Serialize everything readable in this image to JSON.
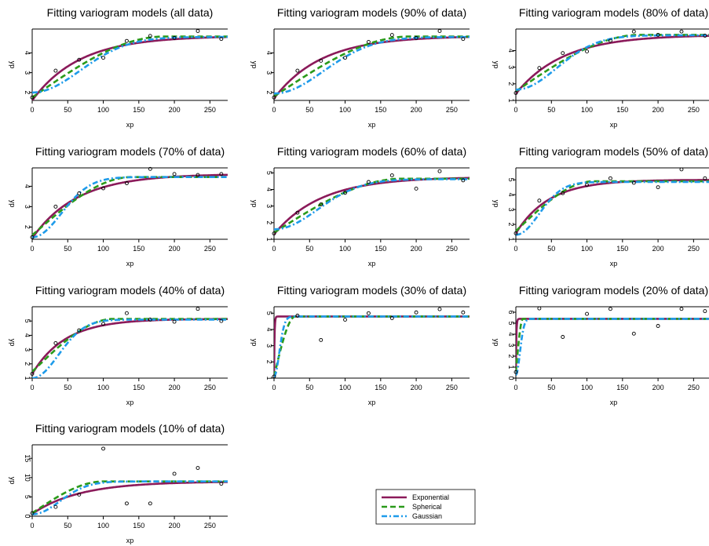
{
  "figure": {
    "xlabel": "xp",
    "ylabel": "yp"
  },
  "legend": {
    "placement": "bottom-center",
    "entries": [
      {
        "label": "Exponential",
        "color": "#8b1a5a",
        "dash": "solid"
      },
      {
        "label": "Spherical",
        "color": "#2a9a1a",
        "dash": "dashed"
      },
      {
        "label": "Gaussian",
        "color": "#1e9bea",
        "dash": "dotdash"
      }
    ]
  },
  "chart_data": [
    {
      "type": "line",
      "title": "Fitting variogram models (all data)",
      "xlabel": "xp",
      "ylabel": "yp",
      "xlim": [
        0,
        275
      ],
      "ylim": [
        1.6,
        5.2
      ],
      "xticks": [
        0,
        50,
        100,
        150,
        200,
        250
      ],
      "yticks": [
        2,
        3,
        4
      ],
      "points": [
        [
          0,
          1.75
        ],
        [
          33,
          3.1
        ],
        [
          66,
          3.65
        ],
        [
          100,
          3.75
        ],
        [
          133,
          4.6
        ],
        [
          166,
          4.85
        ],
        [
          200,
          4.75
        ],
        [
          233,
          5.1
        ],
        [
          266,
          4.7
        ]
      ],
      "models": {
        "exponential": {
          "nugget": 1.6,
          "sill": 4.85,
          "range": 200
        },
        "spherical": {
          "nugget": 1.75,
          "sill": 4.82,
          "range": 185
        },
        "gaussian": {
          "nugget": 2.0,
          "sill": 4.8,
          "range": 165
        }
      }
    },
    {
      "type": "line",
      "title": "Fitting variogram models (90% of data)",
      "xlabel": "xp",
      "ylabel": "yp",
      "xlim": [
        0,
        275
      ],
      "ylim": [
        1.6,
        5.2
      ],
      "xticks": [
        0,
        50,
        100,
        150,
        200,
        250
      ],
      "yticks": [
        2,
        3,
        4
      ],
      "points": [
        [
          0,
          1.75
        ],
        [
          33,
          3.1
        ],
        [
          66,
          3.6
        ],
        [
          100,
          3.75
        ],
        [
          133,
          4.55
        ],
        [
          166,
          4.9
        ],
        [
          200,
          4.75
        ],
        [
          233,
          5.1
        ],
        [
          266,
          4.7
        ]
      ],
      "models": {
        "exponential": {
          "nugget": 1.7,
          "sill": 4.85,
          "range": 200
        },
        "spherical": {
          "nugget": 1.8,
          "sill": 4.82,
          "range": 190
        },
        "gaussian": {
          "nugget": 1.95,
          "sill": 4.8,
          "range": 170
        }
      }
    },
    {
      "type": "line",
      "title": "Fitting variogram models (80% of data)",
      "xlabel": "xp",
      "ylabel": "yp",
      "xlim": [
        0,
        275
      ],
      "ylim": [
        1.0,
        5.3
      ],
      "xticks": [
        0,
        50,
        100,
        150,
        200,
        250
      ],
      "yticks": [
        1,
        2,
        3,
        4
      ],
      "points": [
        [
          0,
          1.45
        ],
        [
          33,
          2.95
        ],
        [
          66,
          3.85
        ],
        [
          100,
          3.95
        ],
        [
          133,
          4.6
        ],
        [
          166,
          5.15
        ],
        [
          200,
          4.95
        ],
        [
          233,
          5.15
        ],
        [
          266,
          4.9
        ]
      ],
      "models": {
        "exponential": {
          "nugget": 1.4,
          "sill": 4.95,
          "range": 200
        },
        "spherical": {
          "nugget": 1.55,
          "sill": 4.95,
          "range": 175
        },
        "gaussian": {
          "nugget": 1.65,
          "sill": 4.92,
          "range": 140
        }
      }
    },
    {
      "type": "line",
      "title": "Fitting variogram models (70% of data)",
      "xlabel": "xp",
      "ylabel": "yp",
      "xlim": [
        0,
        275
      ],
      "ylim": [
        1.4,
        4.9
      ],
      "xticks": [
        0,
        50,
        100,
        150,
        200,
        250
      ],
      "yticks": [
        2,
        3,
        4
      ],
      "points": [
        [
          0,
          1.5
        ],
        [
          33,
          3.0
        ],
        [
          66,
          3.65
        ],
        [
          100,
          3.9
        ],
        [
          133,
          4.15
        ],
        [
          166,
          4.85
        ],
        [
          200,
          4.6
        ],
        [
          233,
          4.55
        ],
        [
          266,
          4.6
        ]
      ],
      "models": {
        "exponential": {
          "nugget": 1.45,
          "sill": 4.6,
          "range": 190
        },
        "spherical": {
          "nugget": 1.6,
          "sill": 4.45,
          "range": 140
        },
        "gaussian": {
          "nugget": 1.5,
          "sill": 4.45,
          "range": 100
        }
      }
    },
    {
      "type": "line",
      "title": "Fitting variogram models (60% of data)",
      "xlabel": "xp",
      "ylabel": "yp",
      "xlim": [
        0,
        275
      ],
      "ylim": [
        1.0,
        5.3
      ],
      "xticks": [
        0,
        50,
        100,
        150,
        200,
        250
      ],
      "yticks": [
        1,
        2,
        3,
        4,
        5
      ],
      "points": [
        [
          0,
          1.35
        ],
        [
          33,
          2.6
        ],
        [
          66,
          3.1
        ],
        [
          100,
          3.8
        ],
        [
          133,
          4.45
        ],
        [
          166,
          4.85
        ],
        [
          200,
          4.05
        ],
        [
          233,
          5.1
        ],
        [
          266,
          4.55
        ]
      ],
      "models": {
        "exponential": {
          "nugget": 1.3,
          "sill": 4.75,
          "range": 200
        },
        "spherical": {
          "nugget": 1.4,
          "sill": 4.65,
          "range": 180
        },
        "gaussian": {
          "nugget": 1.6,
          "sill": 4.62,
          "range": 150
        }
      }
    },
    {
      "type": "line",
      "title": "Fitting variogram models (50% of data)",
      "xlabel": "xp",
      "ylabel": "yp",
      "xlim": [
        0,
        275
      ],
      "ylim": [
        1.0,
        5.8
      ],
      "xticks": [
        0,
        50,
        100,
        150,
        200,
        250
      ],
      "yticks": [
        1,
        2,
        3,
        4,
        5
      ],
      "points": [
        [
          0,
          1.4
        ],
        [
          33,
          3.6
        ],
        [
          66,
          4.1
        ],
        [
          100,
          4.65
        ],
        [
          133,
          5.1
        ],
        [
          166,
          4.8
        ],
        [
          200,
          4.5
        ],
        [
          233,
          5.7
        ],
        [
          266,
          5.1
        ]
      ],
      "models": {
        "exponential": {
          "nugget": 1.4,
          "sill": 5.0,
          "range": 140
        },
        "spherical": {
          "nugget": 1.55,
          "sill": 4.9,
          "range": 110
        },
        "gaussian": {
          "nugget": 1.3,
          "sill": 4.85,
          "range": 80
        }
      }
    },
    {
      "type": "line",
      "title": "Fitting variogram models (40% of data)",
      "xlabel": "xp",
      "ylabel": "yp",
      "xlim": [
        0,
        275
      ],
      "ylim": [
        1.0,
        6.0
      ],
      "xticks": [
        0,
        50,
        100,
        150,
        200,
        250
      ],
      "yticks": [
        1,
        2,
        3,
        4,
        5
      ],
      "points": [
        [
          0,
          1.3
        ],
        [
          33,
          3.45
        ],
        [
          66,
          4.35
        ],
        [
          100,
          4.8
        ],
        [
          133,
          5.55
        ],
        [
          166,
          5.1
        ],
        [
          200,
          4.95
        ],
        [
          233,
          5.85
        ],
        [
          266,
          5.0
        ]
      ],
      "models": {
        "exponential": {
          "nugget": 1.3,
          "sill": 5.15,
          "range": 140
        },
        "spherical": {
          "nugget": 1.45,
          "sill": 5.15,
          "range": 115
        },
        "gaussian": {
          "nugget": 1.0,
          "sill": 5.1,
          "range": 90
        }
      }
    },
    {
      "type": "line",
      "title": "Fitting variogram models (30% of data)",
      "xlabel": "xp",
      "ylabel": "yp",
      "xlim": [
        0,
        275
      ],
      "ylim": [
        1.0,
        5.4
      ],
      "xticks": [
        0,
        50,
        100,
        150,
        200,
        250
      ],
      "yticks": [
        1,
        2,
        3,
        4,
        5
      ],
      "points": [
        [
          0,
          1.1
        ],
        [
          33,
          4.85
        ],
        [
          66,
          3.35
        ],
        [
          100,
          4.6
        ],
        [
          133,
          5.0
        ],
        [
          166,
          4.7
        ],
        [
          200,
          5.05
        ],
        [
          233,
          5.25
        ],
        [
          266,
          5.05
        ]
      ],
      "models": {
        "exponential": {
          "nugget": 1.1,
          "sill": 4.8,
          "range": 2
        },
        "spherical": {
          "nugget": 1.1,
          "sill": 4.8,
          "range": 30
        },
        "gaussian": {
          "nugget": 1.1,
          "sill": 4.8,
          "range": 18
        }
      }
    },
    {
      "type": "line",
      "title": "Fitting variogram models (20% of data)",
      "xlabel": "xp",
      "ylabel": "yp",
      "xlim": [
        0,
        275
      ],
      "ylim": [
        0.0,
        6.5
      ],
      "xticks": [
        0,
        50,
        100,
        150,
        200,
        250
      ],
      "yticks": [
        0,
        1,
        2,
        3,
        4,
        5,
        6
      ],
      "points": [
        [
          0,
          0.55
        ],
        [
          33,
          6.35
        ],
        [
          66,
          3.75
        ],
        [
          100,
          5.85
        ],
        [
          133,
          6.3
        ],
        [
          166,
          4.05
        ],
        [
          200,
          4.75
        ],
        [
          233,
          6.3
        ],
        [
          266,
          6.1
        ]
      ],
      "models": {
        "exponential": {
          "nugget": 0.55,
          "sill": 5.4,
          "range": 2
        },
        "spherical": {
          "nugget": 0.55,
          "sill": 5.4,
          "range": 10
        },
        "gaussian": {
          "nugget": 0.3,
          "sill": 5.4,
          "range": 14
        }
      }
    },
    {
      "type": "line",
      "title": "Fitting variogram models (10% of data)",
      "xlabel": "xp",
      "ylabel": "yp",
      "xlim": [
        0,
        275
      ],
      "ylim": [
        0.0,
        18.5
      ],
      "xticks": [
        0,
        50,
        100,
        150,
        200,
        250
      ],
      "yticks": [
        0,
        5,
        10,
        15
      ],
      "points": [
        [
          0,
          0.8
        ],
        [
          33,
          2.4
        ],
        [
          66,
          5.6
        ],
        [
          100,
          17.5
        ],
        [
          133,
          3.3
        ],
        [
          166,
          3.3
        ],
        [
          200,
          11.0
        ],
        [
          233,
          12.5
        ],
        [
          266,
          8.4
        ]
      ],
      "models": {
        "exponential": {
          "nugget": 0.6,
          "sill": 9.0,
          "range": 200
        },
        "spherical": {
          "nugget": 0.8,
          "sill": 9.0,
          "range": 100
        },
        "gaussian": {
          "nugget": 0.5,
          "sill": 9.0,
          "range": 95
        }
      }
    }
  ]
}
